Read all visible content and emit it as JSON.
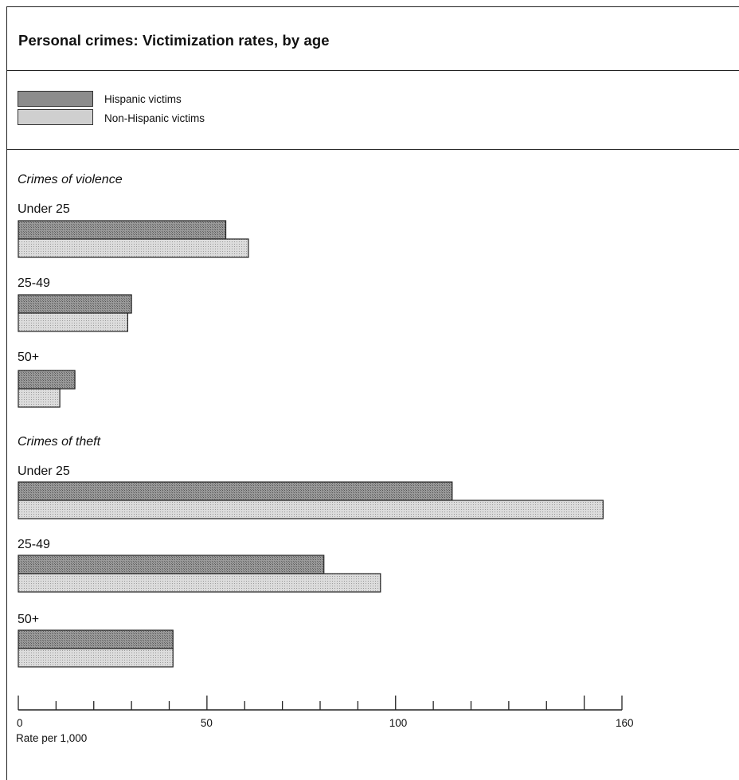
{
  "chart_data": {
    "type": "bar",
    "orientation": "horizontal",
    "title": "Personal crimes: Victimization rates, by age",
    "xlabel": "Rate per 1,000",
    "xlim": [
      0,
      160
    ],
    "ticks": [
      0,
      50,
      100,
      160
    ],
    "legend_placement": "top-left",
    "series": [
      {
        "name": "Hispanic victims",
        "color": "#8c8c8c"
      },
      {
        "name": "Non-Hispanic victims",
        "color": "#cfcfcf"
      }
    ],
    "sections": [
      {
        "label": "Crimes of violence",
        "groups": [
          {
            "label": "Under 25",
            "values": [
              55,
              61
            ]
          },
          {
            "label": "25-49",
            "values": [
              30,
              29
            ]
          },
          {
            "label": "50+",
            "values": [
              15,
              11
            ]
          }
        ]
      },
      {
        "label": "Crimes of theft",
        "groups": [
          {
            "label": "Under 25",
            "values": [
              115,
              155
            ]
          },
          {
            "label": "25-49",
            "values": [
              81,
              96
            ]
          },
          {
            "label": "50+",
            "values": [
              41,
              41
            ]
          }
        ]
      }
    ]
  }
}
